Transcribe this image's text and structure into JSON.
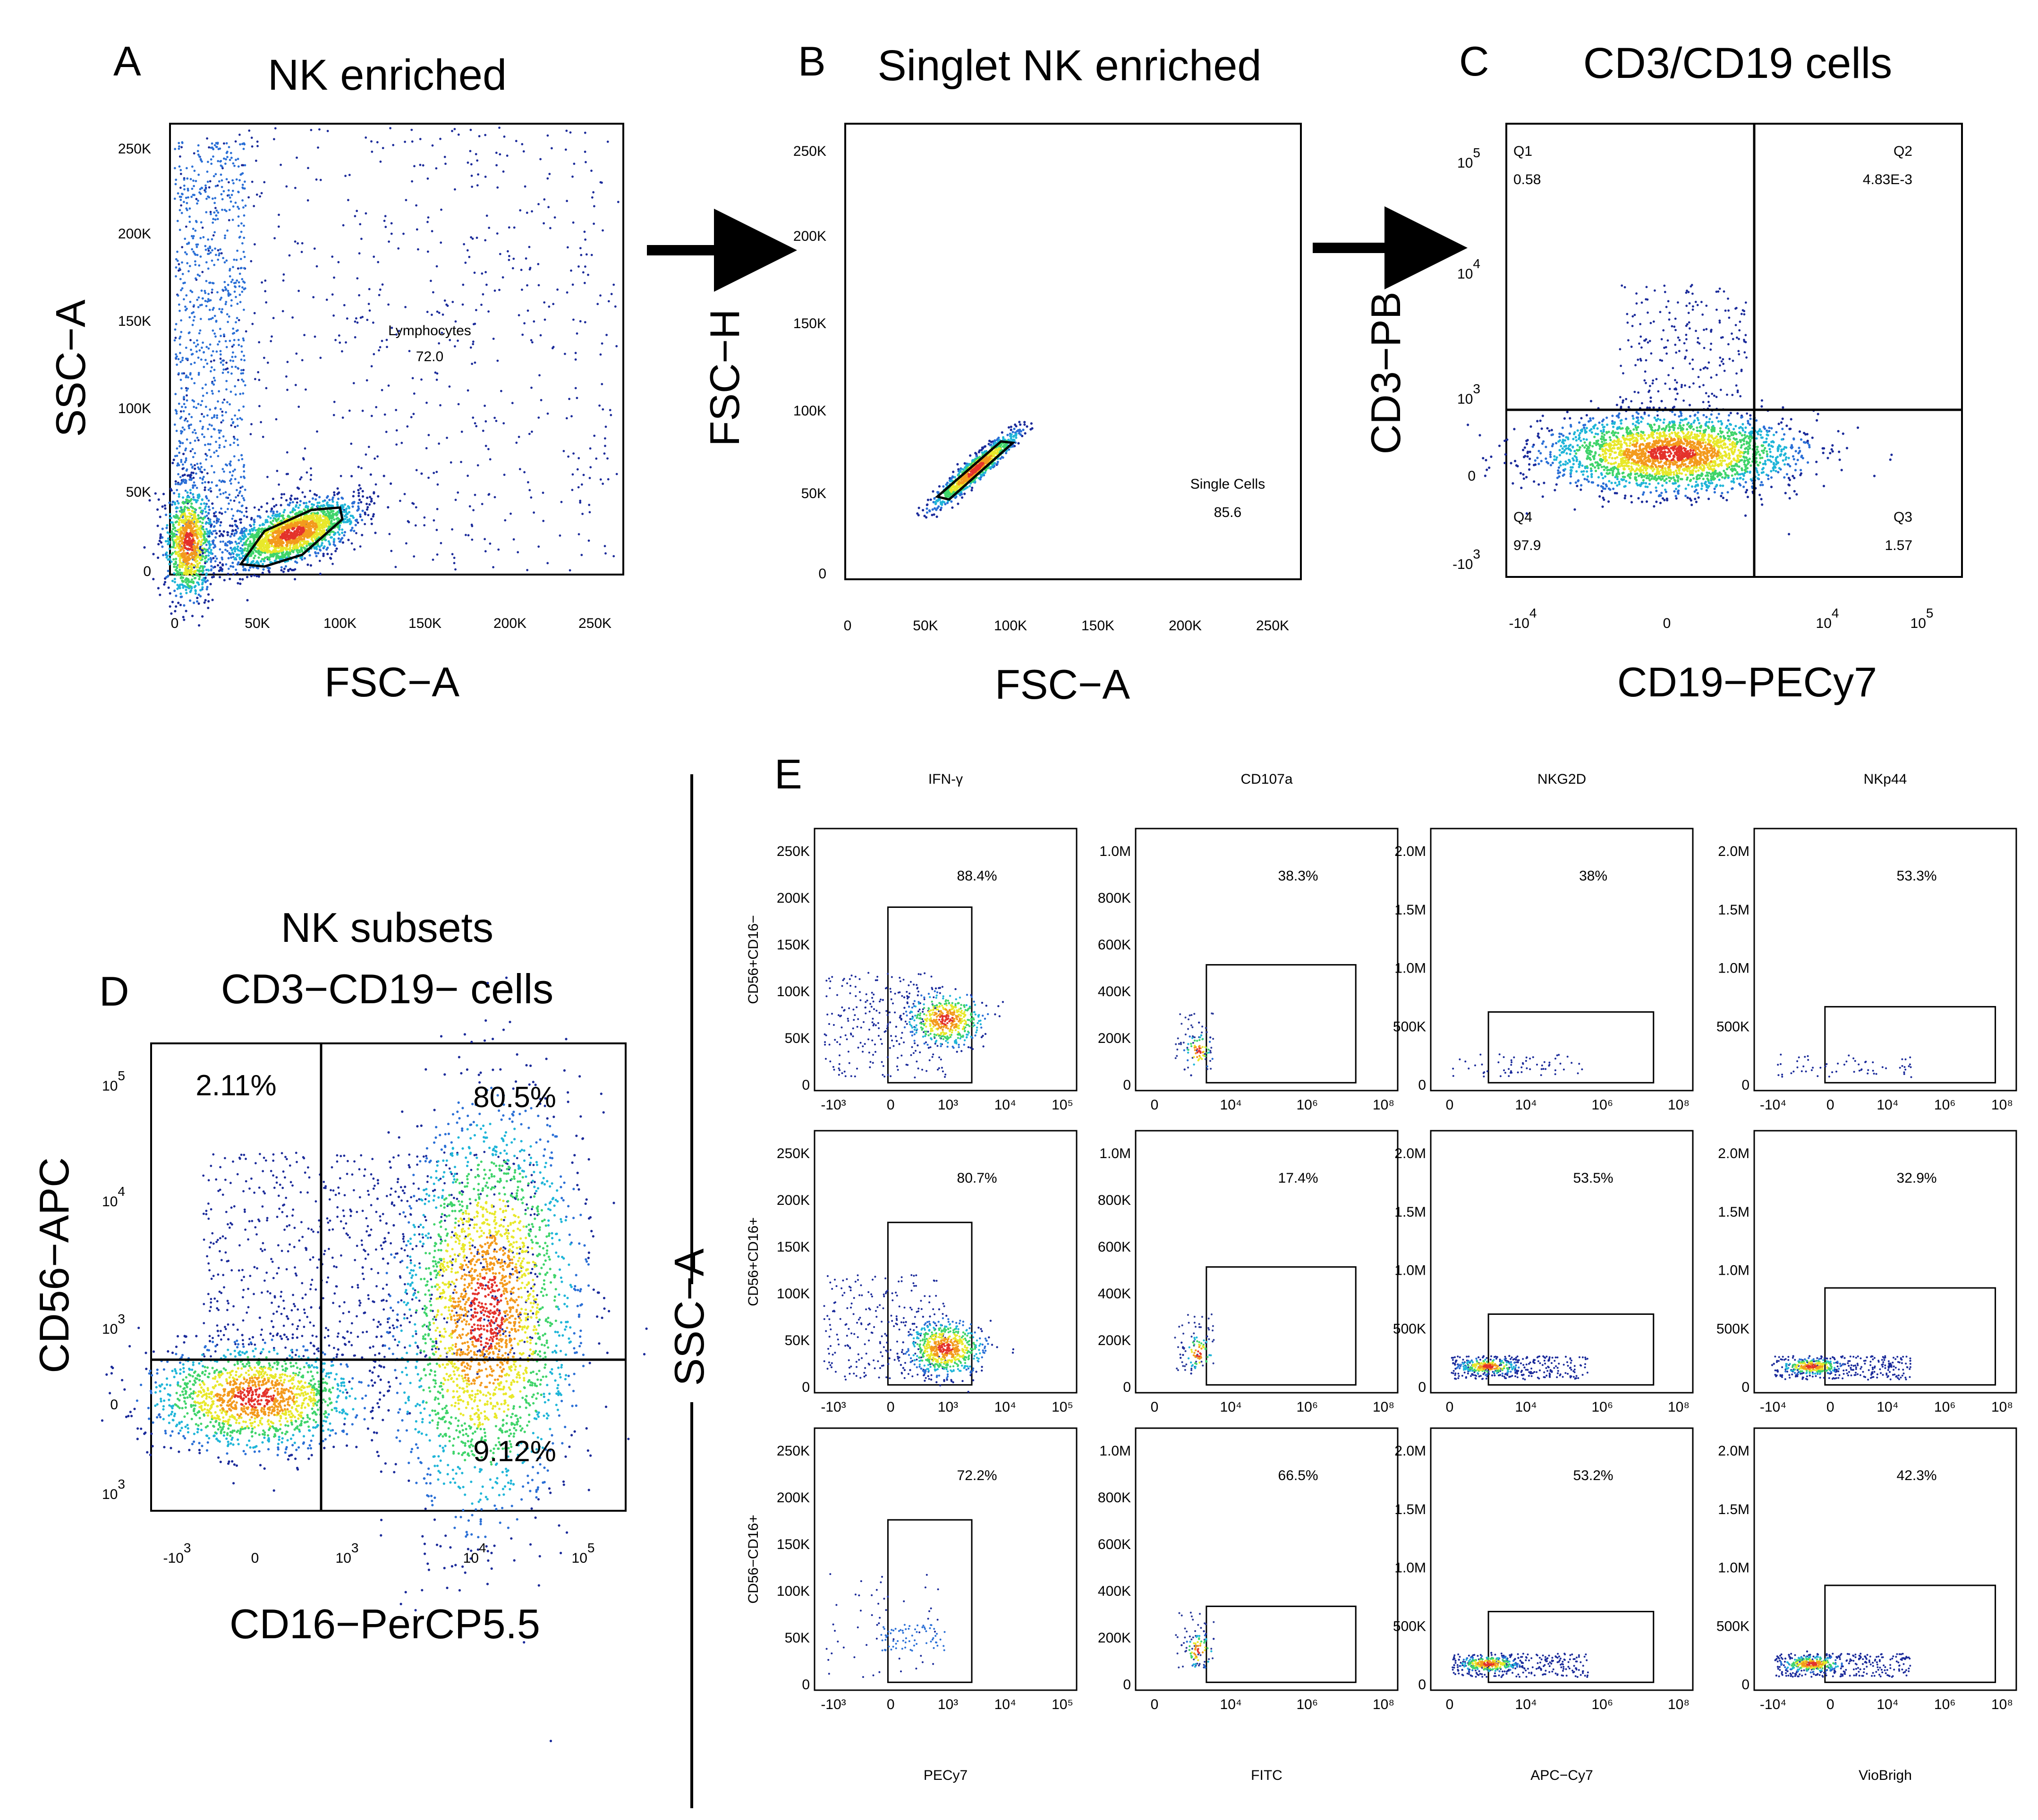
{
  "panel_letters": {
    "a": "A",
    "b": "B",
    "c": "C",
    "d": "D",
    "e": "E"
  },
  "chart_data": [
    {
      "id": "A",
      "type": "scatter",
      "title": "NK enriched",
      "xlabel": "FSC−A",
      "ylabel": "SSC−A",
      "xlim": [
        0,
        262144
      ],
      "ylim": [
        0,
        262144
      ],
      "x_ticks": [
        "0",
        "50K",
        "100K",
        "150K",
        "200K",
        "250K"
      ],
      "y_ticks": [
        "0",
        "50K",
        "100K",
        "150K",
        "200K",
        "250K"
      ],
      "gate": {
        "name": "Lymphocytes",
        "value": "72.0"
      }
    },
    {
      "id": "B",
      "type": "scatter",
      "title": "Singlet NK enriched",
      "xlabel": "FSC−A",
      "ylabel": "FSC−H",
      "xlim": [
        0,
        262144
      ],
      "ylim": [
        0,
        262144
      ],
      "x_ticks": [
        "0",
        "50K",
        "100K",
        "150K",
        "200K",
        "250K"
      ],
      "y_ticks": [
        "0",
        "50K",
        "100K",
        "150K",
        "200K",
        "250K"
      ],
      "gate": {
        "name": "Single Cells",
        "value": "85.6"
      }
    },
    {
      "id": "C",
      "type": "scatter",
      "title": "CD3/CD19 cells",
      "xlabel": "CD19−PECy7",
      "ylabel": "CD3−PB",
      "scale": "biexponential",
      "quadrants": [
        {
          "name": "Q1",
          "value": "0.58"
        },
        {
          "name": "Q2",
          "value": "4.83E-3"
        },
        {
          "name": "Q3",
          "value": "1.57"
        },
        {
          "name": "Q4",
          "value": "97.9"
        }
      ]
    },
    {
      "id": "D",
      "type": "scatter",
      "title": "NK subsets",
      "subtitle": "CD3−CD19− cells",
      "xlabel": "CD16−PerCP5.5",
      "ylabel": "CD56−APC",
      "scale": "biexponential",
      "quadrants": {
        "top_left": "2.11%",
        "top_right": "80.5%",
        "bottom_right": "9.12%"
      }
    },
    {
      "id": "E",
      "type": "scatter",
      "ylabel": "SSC−A",
      "columns": [
        {
          "title": "IFN-γ",
          "xlabel": "PECy7"
        },
        {
          "title": "CD107a",
          "xlabel": "FITC"
        },
        {
          "title": "NKG2D",
          "xlabel": "APC−Cy7"
        },
        {
          "title": "NKp44",
          "xlabel": "VioBrigh"
        }
      ],
      "rows": [
        "CD56+CD16−",
        "CD56+CD16+",
        "CD56−CD16+"
      ],
      "gate_percent": [
        [
          "88.4%",
          "38.3%",
          "38%",
          "53.3%"
        ],
        [
          "80.7%",
          "17.4%",
          "53.5%",
          "32.9%"
        ],
        [
          "72.2%",
          "66.5%",
          "53.2%",
          "42.3%"
        ]
      ],
      "y_ticks_ifn": [
        "0",
        "50K",
        "100K",
        "150K",
        "200K",
        "250K"
      ],
      "y_ticks_cd107a": [
        "0",
        "200K",
        "400K",
        "600K",
        "800K",
        "1.0M"
      ],
      "y_ticks_nk": [
        "0",
        "500K",
        "1.0M",
        "1.5M",
        "2.0M"
      ]
    }
  ]
}
